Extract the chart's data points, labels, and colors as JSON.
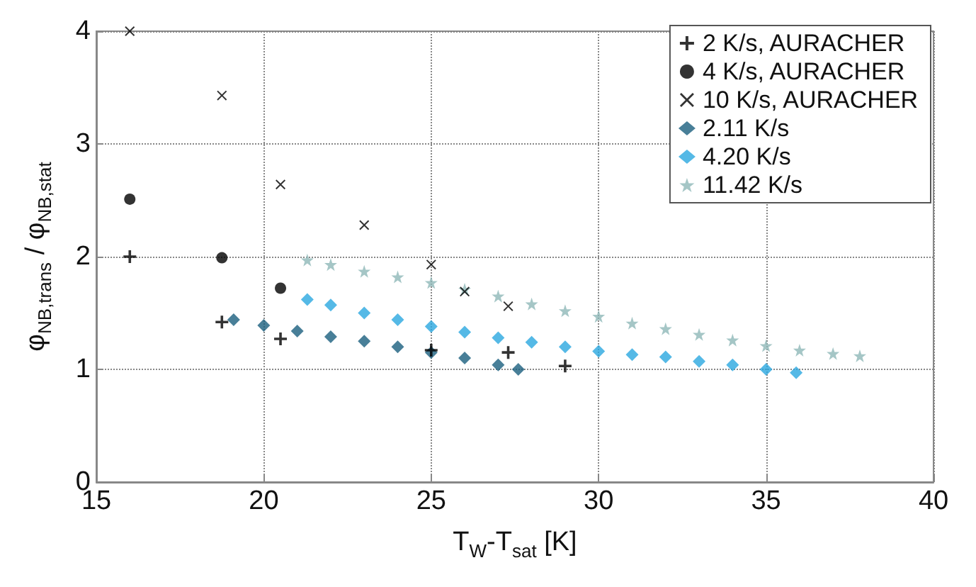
{
  "chart_data": {
    "type": "scatter",
    "xlabel": "T$_{W}$-T$_{sat}$ [K]",
    "ylabel": "φ$_{NB,trans}$ / φ$_{NB,stat}$",
    "xlim": [
      15,
      40
    ],
    "xticks": [
      15,
      20,
      25,
      30,
      35,
      40
    ],
    "ylim": [
      0,
      4
    ],
    "yticks": [
      0,
      1,
      2,
      3,
      4
    ],
    "grid": true,
    "legend": "top right",
    "series": [
      {
        "name": "2 K/s, AURACHER",
        "color": "#000000",
        "marker": "cross",
        "x": [
          16,
          18.75,
          20.5,
          25,
          27.3,
          29
        ],
        "values": [
          2.0,
          1.42,
          1.27,
          1.17,
          1.15,
          1.03
        ]
      },
      {
        "name": "4 K/s, AURACHER",
        "color": "#000000",
        "marker": "circle",
        "x": [
          16,
          18.75,
          20.5
        ],
        "values": [
          2.51,
          1.99,
          1.72
        ]
      },
      {
        "name": "10 K/s, AURACHER",
        "color": "#000000",
        "marker": "x",
        "x": [
          16,
          18.75,
          20.5,
          23,
          25,
          26,
          27.3
        ],
        "values": [
          4.0,
          3.43,
          2.64,
          2.28,
          1.93,
          1.69,
          1.56
        ]
      },
      {
        "name": "2.11 K/s",
        "color": "#1a5f7e",
        "marker": "diamond",
        "x": [
          19.1,
          20,
          21,
          22,
          23,
          24,
          25,
          26,
          27,
          27.6
        ],
        "values": [
          1.44,
          1.39,
          1.34,
          1.29,
          1.25,
          1.2,
          1.15,
          1.1,
          1.04,
          1.0
        ]
      },
      {
        "name": "4.20 K/s",
        "color": "#2aa8e0",
        "marker": "diamond",
        "x": [
          21.3,
          22,
          23,
          24,
          25,
          26,
          27,
          28,
          29,
          30,
          31,
          32,
          33,
          34,
          35,
          35.9
        ],
        "values": [
          1.62,
          1.57,
          1.5,
          1.44,
          1.38,
          1.33,
          1.28,
          1.24,
          1.2,
          1.16,
          1.13,
          1.11,
          1.07,
          1.04,
          1.0,
          0.97
        ]
      },
      {
        "name": "11.42 K/s",
        "color": "#8fb8b8",
        "marker": "star",
        "x": [
          21.3,
          22,
          23,
          24,
          25,
          26,
          27,
          28,
          29,
          30,
          31,
          32,
          33,
          34,
          35,
          36,
          37,
          37.8
        ],
        "values": [
          1.97,
          1.93,
          1.87,
          1.82,
          1.77,
          1.71,
          1.65,
          1.58,
          1.52,
          1.47,
          1.41,
          1.36,
          1.31,
          1.26,
          1.21,
          1.17,
          1.14,
          1.12
        ]
      }
    ]
  }
}
